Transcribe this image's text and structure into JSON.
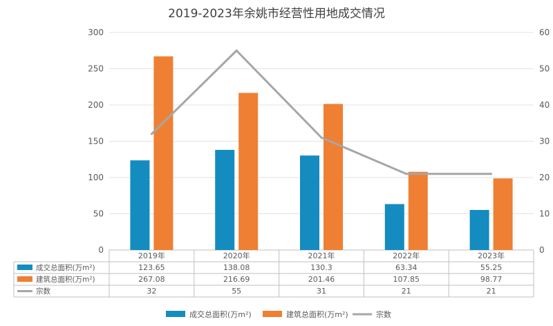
{
  "chart_data": {
    "type": "bar",
    "title": "2019-2023年余姚市经营性用地成交情况",
    "categories": [
      "2019年",
      "2020年",
      "2021年",
      "2022年",
      "2023年"
    ],
    "series": [
      {
        "name": "成交总面积(万m²)",
        "type": "bar",
        "axis": "left",
        "color": "#148cbf",
        "values": [
          123.65,
          138.08,
          130.3,
          63.34,
          55.25
        ],
        "labels": [
          "123.65",
          "138.08",
          "130.3",
          "63.34",
          "55.25"
        ]
      },
      {
        "name": "建筑总面积(万m²)",
        "type": "bar",
        "axis": "left",
        "color": "#ef7f32",
        "values": [
          267.08,
          216.69,
          201.46,
          107.85,
          98.77
        ],
        "labels": [
          "267.08",
          "216.69",
          "201.46",
          "107.85",
          "98.77"
        ]
      },
      {
        "name": "宗数",
        "type": "line",
        "axis": "right",
        "color": "#a6a6a6",
        "values": [
          32,
          55,
          31,
          21,
          21
        ],
        "labels": [
          "32",
          "55",
          "31",
          "21",
          "21"
        ]
      }
    ],
    "y_left": {
      "min": 0,
      "max": 300,
      "ticks": [
        "0",
        "50",
        "100",
        "150",
        "200",
        "250",
        "300"
      ]
    },
    "y_right": {
      "min": 0,
      "max": 60,
      "ticks": [
        "0",
        "10",
        "20",
        "30",
        "40",
        "50",
        "60"
      ]
    },
    "grid": true,
    "legend_position": "bottom",
    "data_table": true
  }
}
